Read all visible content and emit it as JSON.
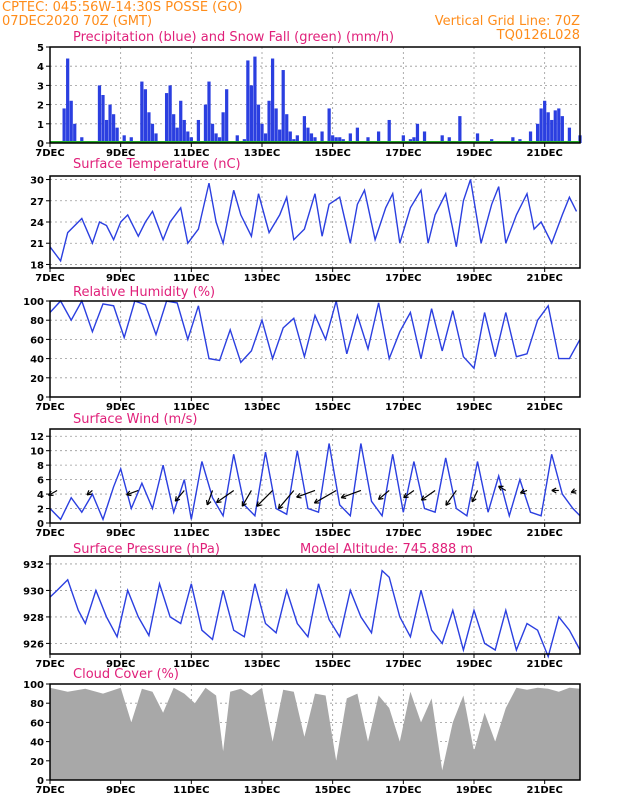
{
  "header": {
    "station": "CPTEC:   045:56W-14:30S   POSSE (GO)",
    "date": "07DEC2020 70Z (GMT)",
    "grid_note": "Vertical Grid Line: 70Z",
    "code": "TQ0126L028",
    "altitude_label": "Model Altitude: 745.888 m"
  },
  "colors": {
    "header": "#ff8c1a",
    "title": "#e0207a",
    "line": "#2b3fe0",
    "cloud": "#a8a8a8",
    "snow": "#22aa22"
  },
  "x_axis": {
    "range_days": [
      7,
      22
    ],
    "tick_days": [
      7,
      9,
      11,
      13,
      15,
      17,
      19,
      21
    ],
    "tick_labels": [
      "7DEC",
      "9DEC",
      "11DEC",
      "13DEC",
      "15DEC",
      "17DEC",
      "19DEC",
      "21DEC"
    ]
  },
  "chart_data": [
    {
      "type": "bar",
      "title": "Precipitation (blue) and Snow Fall (green) (mm/h)",
      "ylim": [
        0,
        5
      ],
      "yticks": [
        0,
        1,
        2,
        3,
        4,
        5
      ],
      "grid": true,
      "x_units": "day of December 2020 (hourly bars)",
      "series": [
        {
          "name": "Precipitation",
          "x": [
            7.4,
            7.5,
            7.6,
            7.7,
            7.9,
            8.4,
            8.5,
            8.6,
            8.7,
            8.8,
            8.9,
            9.1,
            9.3,
            9.6,
            9.7,
            9.8,
            9.9,
            10.0,
            10.3,
            10.4,
            10.5,
            10.6,
            10.7,
            10.8,
            10.9,
            11.0,
            11.2,
            11.4,
            11.5,
            11.6,
            11.7,
            11.8,
            11.9,
            12.0,
            12.3,
            12.5,
            12.6,
            12.7,
            12.8,
            12.9,
            13.0,
            13.1,
            13.2,
            13.3,
            13.4,
            13.5,
            13.6,
            13.7,
            13.8,
            13.9,
            14.0,
            14.2,
            14.3,
            14.4,
            14.5,
            14.7,
            14.9,
            15.0,
            15.1,
            15.2,
            15.3,
            15.5,
            15.7,
            16.0,
            16.3,
            16.6,
            17.0,
            17.2,
            17.3,
            17.4,
            17.6,
            18.1,
            18.3,
            18.6,
            19.1,
            19.5,
            20.1,
            20.3,
            20.6,
            20.8,
            20.9,
            21.0,
            21.1,
            21.2,
            21.3,
            21.4,
            21.5,
            21.7,
            22.0
          ],
          "values": [
            1.8,
            4.4,
            2.2,
            1.0,
            0.3,
            3.0,
            2.5,
            1.2,
            2.0,
            1.5,
            0.8,
            0.4,
            0.3,
            3.2,
            2.8,
            1.6,
            1.0,
            0.5,
            2.6,
            3.0,
            1.5,
            0.8,
            2.2,
            1.2,
            0.6,
            0.3,
            1.2,
            2.0,
            3.2,
            1.0,
            0.5,
            0.3,
            1.6,
            2.8,
            0.4,
            0.2,
            4.3,
            3.0,
            4.5,
            2.0,
            1.0,
            0.5,
            2.2,
            4.4,
            1.8,
            0.7,
            3.8,
            1.5,
            0.6,
            0.2,
            0.4,
            1.4,
            0.8,
            0.5,
            0.3,
            0.6,
            1.8,
            0.4,
            0.3,
            0.3,
            0.2,
            0.5,
            0.8,
            0.3,
            0.6,
            1.2,
            0.4,
            0.2,
            0.3,
            1.0,
            0.6,
            0.4,
            0.3,
            1.4,
            0.5,
            0.2,
            0.3,
            0.2,
            0.6,
            1.0,
            1.8,
            2.2,
            1.6,
            1.2,
            1.7,
            1.8,
            1.4,
            0.8,
            0.4
          ]
        },
        {
          "name": "Snow Fall",
          "x": [
            7.0,
            22.0
          ],
          "values": [
            0,
            0
          ]
        }
      ]
    },
    {
      "type": "line",
      "title": "Surface Temperature (nC)",
      "ylim": [
        17.5,
        30.5
      ],
      "yticks": [
        18,
        21,
        24,
        27,
        30
      ],
      "grid": true,
      "series": [
        {
          "x": [
            7.0,
            7.3,
            7.5,
            7.9,
            8.2,
            8.4,
            8.6,
            8.8,
            9.0,
            9.2,
            9.5,
            9.7,
            9.9,
            10.2,
            10.4,
            10.7,
            10.9,
            11.2,
            11.5,
            11.7,
            11.9,
            12.2,
            12.4,
            12.7,
            12.9,
            13.2,
            13.5,
            13.7,
            13.9,
            14.2,
            14.5,
            14.7,
            14.9,
            15.2,
            15.5,
            15.7,
            15.9,
            16.2,
            16.5,
            16.7,
            16.9,
            17.2,
            17.5,
            17.7,
            17.9,
            18.2,
            18.5,
            18.7,
            18.9,
            19.2,
            19.5,
            19.7,
            19.9,
            20.2,
            20.5,
            20.7,
            20.9,
            21.2,
            21.5,
            21.7,
            21.9
          ],
          "values": [
            20.5,
            18.5,
            22.5,
            24.5,
            21.0,
            24.0,
            23.5,
            21.5,
            24.0,
            25.0,
            22.0,
            24.0,
            25.5,
            21.5,
            24.0,
            26.0,
            21.0,
            23.0,
            29.5,
            24.0,
            21.0,
            28.5,
            25.0,
            22.0,
            28.0,
            22.5,
            25.0,
            27.5,
            21.5,
            23.0,
            28.0,
            22.0,
            26.5,
            27.5,
            21.0,
            26.5,
            28.5,
            21.5,
            26.0,
            28.0,
            21.0,
            26.0,
            28.5,
            21.0,
            25.0,
            28.0,
            20.5,
            27.0,
            30.0,
            21.0,
            26.5,
            29.0,
            21.0,
            25.0,
            28.0,
            23.0,
            24.0,
            21.0,
            25.0,
            27.5,
            25.5
          ]
        }
      ]
    },
    {
      "type": "line",
      "title": "Relative Humidity (%)",
      "ylim": [
        0,
        100
      ],
      "yticks": [
        0,
        20,
        40,
        60,
        80,
        100
      ],
      "grid": true,
      "series": [
        {
          "x": [
            7.0,
            7.3,
            7.6,
            7.9,
            8.2,
            8.5,
            8.8,
            9.1,
            9.4,
            9.7,
            10.0,
            10.3,
            10.6,
            10.9,
            11.2,
            11.5,
            11.8,
            12.1,
            12.4,
            12.7,
            13.0,
            13.3,
            13.6,
            13.9,
            14.2,
            14.5,
            14.8,
            15.1,
            15.4,
            15.7,
            16.0,
            16.3,
            16.6,
            16.9,
            17.2,
            17.5,
            17.8,
            18.1,
            18.4,
            18.7,
            19.0,
            19.3,
            19.6,
            19.9,
            20.2,
            20.5,
            20.8,
            21.1,
            21.4,
            21.7,
            22.0
          ],
          "values": [
            88,
            100,
            80,
            100,
            68,
            97,
            95,
            62,
            100,
            96,
            65,
            100,
            98,
            60,
            95,
            40,
            38,
            70,
            36,
            48,
            80,
            40,
            72,
            82,
            42,
            85,
            60,
            100,
            45,
            85,
            50,
            98,
            40,
            68,
            88,
            40,
            92,
            48,
            90,
            42,
            30,
            88,
            42,
            88,
            42,
            45,
            80,
            95,
            40,
            40,
            60
          ]
        }
      ]
    },
    {
      "type": "line",
      "title": "Surface Wind (m/s)",
      "ylim": [
        0,
        13
      ],
      "yticks": [
        0,
        2,
        4,
        6,
        8,
        10,
        12
      ],
      "grid": true,
      "series": [
        {
          "x": [
            7.0,
            7.3,
            7.6,
            7.9,
            8.2,
            8.5,
            8.8,
            9.0,
            9.3,
            9.6,
            9.9,
            10.2,
            10.5,
            10.8,
            11.0,
            11.3,
            11.6,
            11.9,
            12.2,
            12.5,
            12.8,
            13.1,
            13.4,
            13.7,
            14.0,
            14.3,
            14.6,
            14.9,
            15.2,
            15.5,
            15.8,
            16.1,
            16.4,
            16.7,
            17.0,
            17.3,
            17.6,
            17.9,
            18.2,
            18.5,
            18.8,
            19.1,
            19.4,
            19.7,
            20.0,
            20.3,
            20.6,
            20.9,
            21.2,
            21.5,
            21.8,
            22.0
          ],
          "values": [
            2.0,
            0.5,
            3.5,
            1.5,
            4.0,
            0.5,
            5.0,
            7.5,
            2.0,
            5.5,
            2.0,
            8.0,
            1.5,
            6.0,
            0.5,
            8.5,
            3.5,
            1.0,
            9.5,
            2.5,
            1.0,
            9.8,
            2.0,
            1.2,
            10.0,
            2.0,
            1.5,
            11.0,
            2.5,
            1.0,
            11.0,
            3.0,
            1.0,
            9.5,
            1.5,
            8.5,
            2.0,
            1.5,
            9.0,
            2.0,
            1.0,
            8.5,
            1.5,
            6.5,
            1.0,
            6.0,
            1.5,
            1.0,
            9.5,
            4.0,
            2.0,
            1.0
          ]
        }
      ],
      "arrows_day": [
        7.2,
        8.2,
        9.5,
        10.8,
        11.6,
        12.2,
        12.7,
        13.3,
        13.9,
        14.5,
        15.1,
        15.8,
        16.6,
        17.3,
        17.9,
        18.5,
        19.1,
        19.9,
        20.5,
        21.4,
        21.9
      ],
      "arrows_dir_deg": [
        210,
        220,
        200,
        230,
        250,
        215,
        240,
        225,
        230,
        200,
        210,
        200,
        220,
        215,
        215,
        235,
        245,
        150,
        200,
        180,
        200
      ],
      "arrows_len": [
        0.7,
        0.5,
        0.9,
        1.0,
        1.1,
        1.5,
        1.3,
        1.6,
        1.7,
        1.4,
        1.8,
        1.5,
        1.0,
        0.9,
        1.2,
        1.3,
        0.9,
        0.6,
        0.5,
        0.5,
        0.4
      ]
    },
    {
      "type": "line",
      "title": "Surface Pressure (hPa)",
      "ylim": [
        925.2,
        932.6
      ],
      "yticks": [
        926,
        928,
        930,
        932
      ],
      "grid": true,
      "series": [
        {
          "x": [
            7.0,
            7.2,
            7.5,
            7.8,
            8.0,
            8.3,
            8.6,
            8.9,
            9.2,
            9.5,
            9.8,
            10.1,
            10.4,
            10.7,
            11.0,
            11.3,
            11.6,
            11.9,
            12.2,
            12.5,
            12.8,
            13.1,
            13.4,
            13.7,
            14.0,
            14.3,
            14.6,
            14.9,
            15.2,
            15.5,
            15.8,
            16.1,
            16.4,
            16.6,
            16.9,
            17.2,
            17.5,
            17.8,
            18.1,
            18.4,
            18.7,
            19.0,
            19.3,
            19.6,
            19.9,
            20.2,
            20.5,
            20.8,
            21.1,
            21.4,
            21.7,
            22.0
          ],
          "values": [
            929.5,
            930.0,
            930.8,
            928.5,
            927.5,
            930.0,
            928.0,
            926.5,
            930.0,
            928.0,
            926.6,
            930.5,
            928.0,
            927.5,
            930.5,
            927.0,
            926.3,
            930.0,
            927.0,
            926.5,
            930.5,
            927.5,
            926.8,
            930.0,
            927.5,
            926.5,
            930.5,
            927.8,
            926.5,
            930.0,
            928.0,
            926.8,
            931.5,
            931.0,
            928.0,
            926.5,
            930.0,
            927.0,
            926.0,
            928.5,
            925.5,
            928.5,
            926.0,
            925.5,
            928.5,
            925.5,
            927.5,
            927.0,
            925.0,
            928.0,
            927.0,
            925.5
          ]
        }
      ]
    },
    {
      "type": "area",
      "title": "Cloud Cover (%)",
      "ylim": [
        0,
        100
      ],
      "yticks": [
        0,
        20,
        40,
        60,
        80,
        100
      ],
      "grid": true,
      "series": [
        {
          "x": [
            7.0,
            7.5,
            8.0,
            8.5,
            9.0,
            9.3,
            9.6,
            9.9,
            10.2,
            10.5,
            10.8,
            11.1,
            11.4,
            11.7,
            11.9,
            12.1,
            12.4,
            12.7,
            13.0,
            13.3,
            13.6,
            13.9,
            14.2,
            14.5,
            14.8,
            15.1,
            15.4,
            15.7,
            16.0,
            16.3,
            16.6,
            16.9,
            17.2,
            17.5,
            17.8,
            18.1,
            18.4,
            18.7,
            19.0,
            19.3,
            19.6,
            19.9,
            20.2,
            20.5,
            20.8,
            21.1,
            21.4,
            21.7,
            22.0
          ],
          "values": [
            96,
            92,
            95,
            90,
            96,
            60,
            95,
            92,
            70,
            96,
            90,
            80,
            96,
            88,
            30,
            92,
            95,
            88,
            96,
            40,
            94,
            92,
            45,
            90,
            88,
            20,
            85,
            90,
            40,
            88,
            75,
            40,
            92,
            60,
            85,
            10,
            60,
            88,
            30,
            70,
            40,
            75,
            96,
            94,
            96,
            95,
            92,
            96,
            95
          ]
        }
      ]
    }
  ]
}
